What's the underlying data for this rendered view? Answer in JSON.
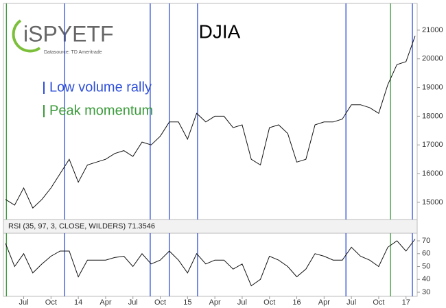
{
  "branding": {
    "logo": "iSPYETF",
    "source": "Datasource: TD Ameritrade"
  },
  "chart_data": [
    {
      "type": "line",
      "title": "DJIA",
      "categories": [
        null,
        null,
        "Jul",
        null,
        null,
        "Oct",
        null,
        null,
        "14",
        null,
        null,
        "Apr",
        null,
        null,
        "Jul",
        null,
        null,
        "Oct",
        null,
        null,
        "15",
        null,
        null,
        "Apr",
        null,
        null,
        "Jul",
        null,
        null,
        "Oct",
        null,
        null,
        "16",
        null,
        null,
        "Apr",
        null,
        null,
        "Jul",
        null,
        null,
        "Oct",
        null,
        null,
        "17",
        null
      ],
      "series": [
        {
          "name": "DJIA",
          "color": "#111111",
          "values": [
            15100,
            14900,
            15500,
            14800,
            15100,
            15500,
            16000,
            16500,
            15700,
            16300,
            16400,
            16500,
            16700,
            16800,
            16600,
            17100,
            17000,
            17300,
            17800,
            17800,
            17200,
            18100,
            17800,
            18000,
            18000,
            17600,
            17700,
            16500,
            16300,
            17600,
            17700,
            17400,
            16400,
            16500,
            17700,
            17800,
            17800,
            17900,
            18400,
            18400,
            18300,
            18100,
            19100,
            19800,
            19900,
            20800
          ]
        }
      ],
      "markers": [
        {
          "name": "Low volume rally",
          "color": "#2e4fd8",
          "positions": [
            6.5,
            15.9,
            18.0,
            21.1,
            37.4,
            44.7
          ]
        },
        {
          "name": "Peak momentum",
          "color": "#3a9a3a",
          "positions": [
            0.1,
            42.3
          ]
        }
      ],
      "ylim": [
        14400,
        21930
      ],
      "yticks": [
        15000,
        16000,
        17000,
        18000,
        19000,
        20000,
        21000
      ]
    },
    {
      "type": "line",
      "title": "RSI (35, 97, 3, CLOSE, WILDERS) 71.3546",
      "series": [
        {
          "name": "RSI",
          "color": "#111111",
          "values": [
            68,
            50,
            60,
            45,
            52,
            58,
            62,
            62,
            42,
            55,
            55,
            55,
            57,
            58,
            50,
            60,
            52,
            55,
            62,
            55,
            45,
            60,
            52,
            55,
            55,
            48,
            52,
            35,
            40,
            58,
            55,
            50,
            42,
            48,
            60,
            58,
            55,
            55,
            65,
            58,
            55,
            50,
            65,
            70,
            62,
            71.3546
          ]
        }
      ],
      "ylim": [
        26.8,
        75.9
      ],
      "yticks": [
        30,
        40,
        50,
        60,
        70
      ]
    }
  ]
}
